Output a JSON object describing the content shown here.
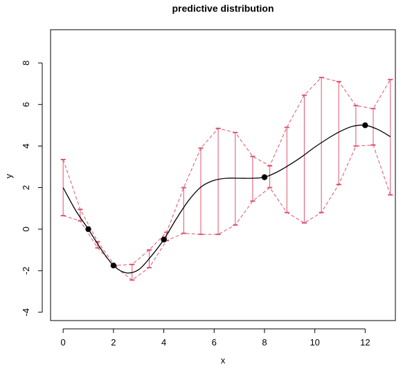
{
  "chart_data": {
    "type": "line",
    "title": "predictive distribution",
    "xlabel": "x",
    "ylabel": "y",
    "xlim": [
      -0.5,
      13.2
    ],
    "ylim": [
      -4.4,
      9.6
    ],
    "x_ticks": [
      0,
      2,
      4,
      6,
      8,
      10,
      12
    ],
    "y_ticks": [
      -4,
      -2,
      0,
      2,
      4,
      6,
      8
    ],
    "x_tick_labels": [
      "0",
      "2",
      "4",
      "6",
      "8",
      "10",
      "12"
    ],
    "y_tick_labels": [
      "-4",
      "-2",
      "0",
      "2",
      "4",
      "6",
      "8"
    ],
    "grid": false,
    "colors": {
      "mean": "#000000",
      "interval": "#DF536B",
      "points": "#000000"
    },
    "observed_points": {
      "x": [
        1,
        2,
        4,
        8,
        12
      ],
      "y": [
        0,
        -1.75,
        -0.5,
        2.5,
        5.0
      ]
    },
    "mean_curve": {
      "x": [
        0,
        0.5,
        1,
        1.5,
        2,
        2.5,
        3,
        3.5,
        4,
        4.5,
        5,
        5.5,
        6,
        6.5,
        7,
        7.5,
        8,
        8.5,
        9,
        9.5,
        10,
        10.5,
        11,
        11.5,
        12,
        12.5,
        13
      ],
      "y": [
        2.0,
        0.9,
        0.0,
        -0.95,
        -1.75,
        -2.1,
        -1.95,
        -1.3,
        -0.5,
        0.5,
        1.4,
        2.05,
        2.35,
        2.45,
        2.45,
        2.45,
        2.5,
        2.75,
        3.1,
        3.5,
        3.95,
        4.35,
        4.7,
        4.95,
        5.0,
        4.8,
        4.45
      ]
    },
    "prediction_intervals": {
      "x": [
        0,
        0.68,
        1.37,
        2.05,
        2.74,
        3.42,
        4.11,
        4.79,
        5.47,
        6.16,
        6.84,
        7.53,
        8.21,
        8.89,
        9.58,
        10.26,
        10.95,
        11.63,
        12.32,
        13.0
      ],
      "lower": [
        0.65,
        0.4,
        -0.9,
        -1.8,
        -2.45,
        -1.85,
        -0.55,
        -0.2,
        -0.25,
        -0.25,
        0.2,
        1.35,
        2.0,
        0.8,
        0.3,
        0.8,
        2.15,
        4.0,
        4.05,
        1.65
      ],
      "upper": [
        3.35,
        0.95,
        -0.6,
        -1.75,
        -1.7,
        -1.0,
        -0.15,
        2.0,
        3.9,
        4.85,
        4.65,
        3.5,
        3.05,
        4.9,
        6.45,
        7.3,
        7.1,
        5.95,
        5.8,
        7.2
      ]
    }
  }
}
